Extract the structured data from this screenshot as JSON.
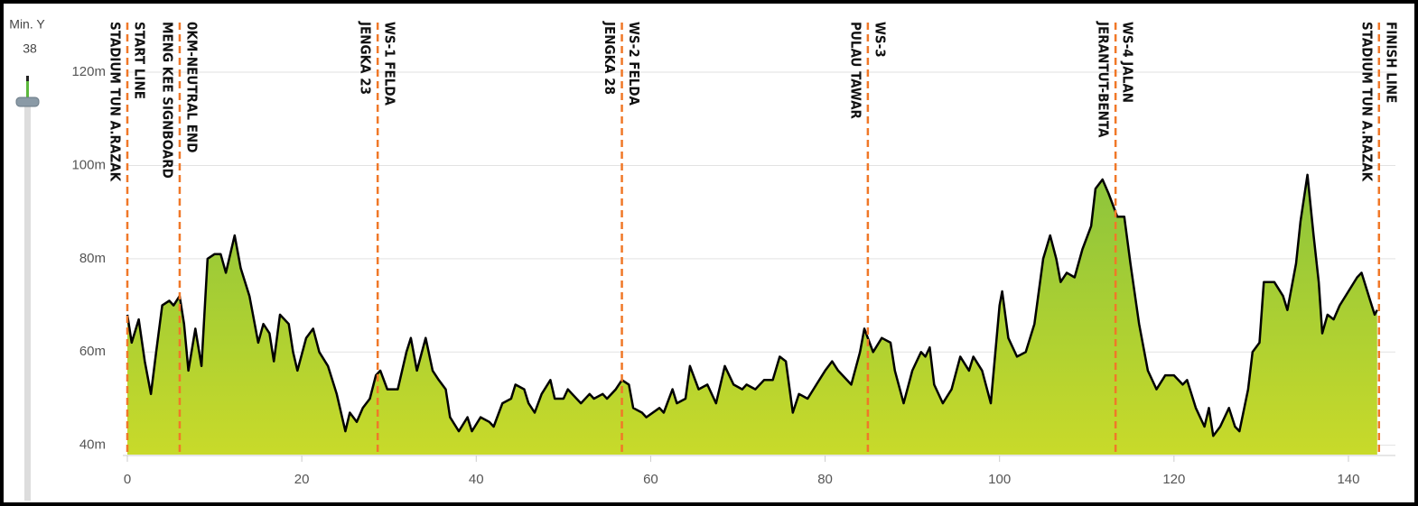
{
  "chart_data": {
    "type": "area",
    "slider": {
      "title": "Min. Y",
      "value": 38
    },
    "line_color": "#000000",
    "fill_top": "#8cc43c",
    "fill_bottom": "#c8da2a",
    "marker_color": "#f07828",
    "xlim": [
      0,
      145
    ],
    "xticks": [
      0,
      20,
      40,
      60,
      80,
      100,
      120,
      140
    ],
    "ylim": [
      38,
      132
    ],
    "yticks": [
      {
        "value": 40,
        "label": "40m"
      },
      {
        "value": 60,
        "label": "60m"
      },
      {
        "value": 80,
        "label": "80m"
      },
      {
        "value": 100,
        "label": "100m"
      },
      {
        "value": 120,
        "label": "120m"
      }
    ],
    "grid": true,
    "markers": [
      {
        "x": 0,
        "label": [
          "START LINE",
          "STADIUM TUN A.RAZAK"
        ]
      },
      {
        "x": 6,
        "label": [
          "0KM-NEUTRAL END",
          "MENG KEE SIGNBOARD"
        ]
      },
      {
        "x": 28.7,
        "label": [
          "WS-1 FELDA",
          "JENGKA 23"
        ]
      },
      {
        "x": 56.7,
        "label": [
          "WS-2 FELDA",
          "JENGKA 28"
        ]
      },
      {
        "x": 84.9,
        "label": [
          "WS-3",
          "PULAU TAWAR"
        ]
      },
      {
        "x": 113.3,
        "label": [
          "WS-4 JALAN",
          "JERANTUT-BENTA"
        ]
      },
      {
        "x": 143.5,
        "label": [
          "FINISH LINE",
          "STADIUM TUN A.RAZAK"
        ]
      }
    ],
    "x": [
      0,
      0.5,
      1.3,
      2,
      2.7,
      3.3,
      4,
      4.8,
      5.3,
      6,
      6.5,
      7,
      7.8,
      8.5,
      9.2,
      10,
      10.7,
      11.3,
      12.3,
      13,
      14,
      15,
      15.6,
      16.3,
      16.8,
      17.5,
      18.5,
      19,
      19.5,
      20.5,
      21.3,
      22,
      23,
      24,
      25,
      25.5,
      26.3,
      27,
      27.8,
      28.5,
      29,
      29.8,
      31,
      32,
      32.5,
      33.2,
      34.2,
      35,
      35.7,
      36.5,
      37,
      38,
      39,
      39.5,
      40.5,
      41.5,
      42,
      43,
      44,
      44.5,
      45.5,
      46,
      46.7,
      47.5,
      48.5,
      49,
      50,
      50.5,
      51,
      52,
      53,
      53.5,
      54.5,
      55,
      56,
      56.7,
      57.5,
      58,
      59,
      59.5,
      61,
      61.5,
      62.5,
      63,
      64,
      64.5,
      65.5,
      66.5,
      67.5,
      68.5,
      69.5,
      70.5,
      71,
      72,
      73,
      74,
      74.8,
      75.5,
      76.3,
      77,
      78,
      79,
      80,
      80.8,
      81.5,
      82,
      83,
      84,
      84.5,
      85.5,
      86.5,
      87.5,
      88,
      89,
      90,
      91,
      91.5,
      92,
      92.5,
      93.5,
      94.5,
      95.5,
      96.5,
      97,
      98,
      99,
      100,
      100.3,
      101,
      102,
      103,
      104,
      105,
      105.8,
      106.5,
      107,
      107.7,
      108.6,
      109.5,
      110.5,
      111,
      111.8,
      112.5,
      113.5,
      114.3,
      115,
      116,
      117,
      118,
      119,
      120,
      121,
      121.5,
      122.5,
      123.5,
      124,
      124.5,
      125.3,
      126.3,
      127,
      127.5,
      128.5,
      129,
      129.8,
      130.3,
      131.5,
      132.5,
      133,
      134,
      134.5,
      135.3,
      136,
      136.6,
      137,
      137.6,
      138.3,
      139,
      140,
      141,
      141.5,
      142.5,
      143,
      143.3
    ],
    "values": [
      68,
      62,
      67,
      58,
      51,
      60,
      70,
      71,
      70,
      72,
      66,
      56,
      65,
      57,
      80,
      81,
      81,
      77,
      85,
      78,
      72,
      62,
      66,
      64,
      58,
      68,
      66,
      60,
      56,
      63,
      65,
      60,
      57,
      51,
      43,
      47,
      45,
      48,
      50,
      55,
      56,
      52,
      52,
      60,
      63,
      56,
      63,
      56,
      54,
      52,
      46,
      43,
      46,
      43,
      46,
      45,
      44,
      49,
      50,
      53,
      52,
      49,
      47,
      51,
      54,
      50,
      50,
      52,
      51,
      49,
      51,
      50,
      51,
      50,
      52,
      54,
      53,
      48,
      47,
      46,
      48,
      47,
      52,
      49,
      50,
      57,
      52,
      53,
      49,
      57,
      53,
      52,
      53,
      52,
      54,
      54,
      59,
      58,
      47,
      51,
      50,
      53,
      56,
      58,
      56,
      55,
      53,
      60,
      65,
      60,
      63,
      62,
      56,
      49,
      56,
      60,
      59,
      61,
      53,
      49,
      52,
      59,
      56,
      59,
      56,
      49,
      70,
      73,
      63,
      59,
      60,
      66,
      80,
      85,
      80,
      75,
      77,
      76,
      82,
      87,
      95,
      97,
      94,
      89,
      89,
      79,
      66,
      56,
      52,
      55,
      55,
      53,
      54,
      48,
      44,
      48,
      42,
      44,
      48,
      44,
      43,
      52,
      60,
      62,
      75,
      75,
      72,
      69,
      79,
      88,
      98,
      85,
      75,
      64,
      68,
      67,
      70,
      73,
      76,
      77,
      71,
      68,
      69
    ]
  }
}
